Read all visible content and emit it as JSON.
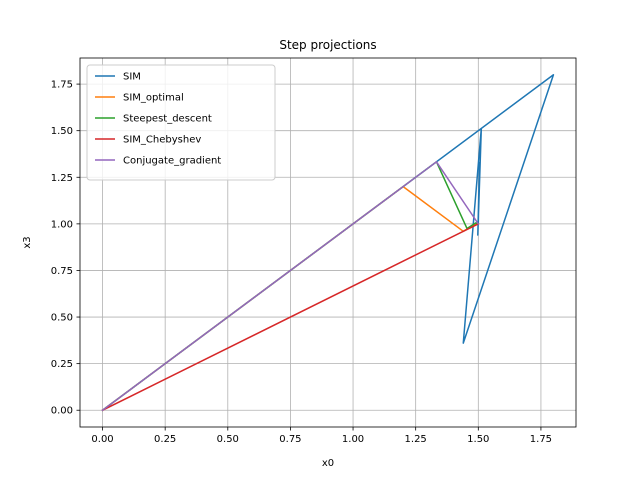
{
  "chart_data": {
    "type": "line",
    "title": "Step projections",
    "xlabel": "x0",
    "ylabel": "x3",
    "xlim": [
      -0.09,
      1.89
    ],
    "ylim": [
      -0.09,
      1.89
    ],
    "xticks": [
      0.0,
      0.25,
      0.5,
      0.75,
      1.0,
      1.25,
      1.5,
      1.75
    ],
    "yticks": [
      0.0,
      0.25,
      0.5,
      0.75,
      1.0,
      1.25,
      1.5,
      1.75
    ],
    "xtick_labels": [
      "0.00",
      "0.25",
      "0.50",
      "0.75",
      "1.00",
      "1.25",
      "1.50",
      "1.75"
    ],
    "ytick_labels": [
      "0.00",
      "0.25",
      "0.50",
      "0.75",
      "1.00",
      "1.25",
      "1.50",
      "1.75"
    ],
    "grid": true,
    "legend_position": "upper-left",
    "series": [
      {
        "name": "SIM",
        "color": "#1f77b4",
        "points": [
          [
            0,
            0
          ],
          [
            1.8,
            1.8
          ],
          [
            1.44,
            0.36
          ],
          [
            1.512,
            1.512
          ],
          [
            1.498,
            0.94
          ],
          [
            1.505,
            1.33
          ],
          [
            1.5,
            1.0
          ]
        ]
      },
      {
        "name": "SIM_optimal",
        "color": "#ff7f0e",
        "points": [
          [
            0,
            0
          ],
          [
            1.2,
            1.2
          ],
          [
            1.44,
            0.96
          ],
          [
            1.49,
            1.0
          ],
          [
            1.5,
            1.0
          ]
        ]
      },
      {
        "name": "Steepest_descent",
        "color": "#2ca02c",
        "points": [
          [
            0,
            0
          ],
          [
            1.333,
            1.333
          ],
          [
            1.455,
            0.975
          ],
          [
            1.49,
            1.005
          ],
          [
            1.5,
            1.0
          ]
        ]
      },
      {
        "name": "SIM_Chebyshev",
        "color": "#d62728",
        "points": [
          [
            0,
            0
          ],
          [
            1.5,
            1.0
          ]
        ]
      },
      {
        "name": "Conjugate_gradient",
        "color": "#9467bd",
        "points": [
          [
            0,
            0
          ],
          [
            1.333,
            1.333
          ],
          [
            1.5,
            1.0
          ]
        ]
      }
    ]
  }
}
